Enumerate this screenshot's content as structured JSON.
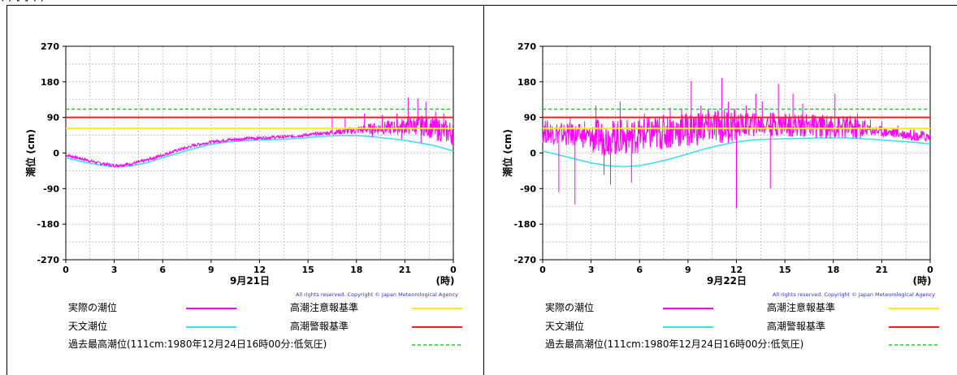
{
  "header_fragment": "(        )  [        ]                                         (                                                                         )",
  "legend": {
    "actual": "実際の潮位",
    "astronomical": "天文潮位",
    "highest": "過去最高潮位(111cm:1980年12月24日16時00分:低気圧)",
    "caution": "高潮注意報基準",
    "warning": "高潮警報基準"
  },
  "copyright": "All rights reserved. Copyright © Japan Meteorological Agency",
  "colors": {
    "actual": "#ff00ff",
    "astronomical": "#44ddee",
    "caution": "#ffee00",
    "warning": "#ee2222",
    "highest": "#22cc22",
    "grid": "#bbbbbb"
  },
  "chart_data": [
    {
      "type": "line",
      "xlabel": "9月21日",
      "x_unit": "(時)",
      "ylabel": "潮位 (cm)",
      "xlim": [
        0,
        24
      ],
      "ylim": [
        -270,
        270
      ],
      "x_ticks": [
        "0",
        "3",
        "6",
        "9",
        "12",
        "15",
        "18",
        "21",
        "0"
      ],
      "y_ticks": [
        "270",
        "180",
        "90",
        "0",
        "-90",
        "-180",
        "-270"
      ],
      "grid": true,
      "reference_lines": {
        "highest": 111,
        "warning": 90,
        "caution": 62
      },
      "series": [
        {
          "name": "天文潮位",
          "x": [
            0,
            1,
            2,
            3,
            4,
            5,
            6,
            7,
            8,
            9,
            10,
            11,
            12,
            13,
            14,
            15,
            16,
            17,
            18,
            19,
            20,
            21,
            22,
            23,
            24
          ],
          "y": [
            -12,
            -22,
            -30,
            -35,
            -33,
            -25,
            -12,
            0,
            12,
            22,
            28,
            31,
            33,
            34,
            36,
            39,
            42,
            44,
            44,
            41,
            37,
            32,
            25,
            17,
            5
          ]
        },
        {
          "name": "実際の潮位",
          "x": [
            0,
            1,
            2,
            3,
            4,
            5,
            6,
            7,
            8,
            9,
            10,
            11,
            12,
            13,
            14,
            15,
            16,
            17,
            18,
            19,
            20,
            21,
            22,
            23,
            24
          ],
          "y": [
            -5,
            -15,
            -25,
            -32,
            -28,
            -18,
            -5,
            8,
            20,
            28,
            33,
            36,
            38,
            40,
            42,
            46,
            50,
            54,
            58,
            62,
            64,
            68,
            70,
            60,
            50
          ],
          "spikes": [
            [
              16.5,
              90
            ],
            [
              17.3,
              88
            ],
            [
              18.5,
              100
            ],
            [
              19.6,
              96
            ],
            [
              20.5,
              100
            ],
            [
              21.2,
              140
            ],
            [
              21.8,
              138
            ],
            [
              22.3,
              130
            ],
            [
              22.9,
              105
            ],
            [
              23.4,
              100
            ],
            [
              19.0,
              40
            ],
            [
              20.8,
              35
            ],
            [
              22.0,
              25
            ],
            [
              23.0,
              30
            ]
          ]
        }
      ]
    },
    {
      "type": "line",
      "xlabel": "9月22日",
      "x_unit": "(時)",
      "ylabel": "潮位 (cm)",
      "xlim": [
        0,
        24
      ],
      "ylim": [
        -270,
        270
      ],
      "x_ticks": [
        "0",
        "3",
        "6",
        "9",
        "12",
        "15",
        "18",
        "21",
        "0"
      ],
      "y_ticks": [
        "270",
        "180",
        "90",
        "0",
        "-90",
        "-180",
        "-270"
      ],
      "grid": true,
      "reference_lines": {
        "highest": 111,
        "warning": 90,
        "caution": 62
      },
      "series": [
        {
          "name": "天文潮位",
          "x": [
            0,
            1,
            2,
            3,
            4,
            5,
            6,
            7,
            8,
            9,
            10,
            11,
            12,
            13,
            14,
            15,
            16,
            17,
            18,
            19,
            20,
            21,
            22,
            23,
            24
          ],
          "y": [
            5,
            -5,
            -15,
            -25,
            -32,
            -35,
            -32,
            -24,
            -14,
            -2,
            10,
            20,
            28,
            33,
            35,
            36,
            37,
            38,
            38,
            38,
            36,
            33,
            30,
            27,
            23
          ],
          "style": "solid"
        },
        {
          "name": "実際の潮位",
          "x": [
            0,
            1,
            2,
            3,
            4,
            5,
            6,
            7,
            8,
            9,
            10,
            11,
            12,
            13,
            14,
            15,
            16,
            17,
            18,
            19,
            20,
            21,
            22,
            23,
            24
          ],
          "y": [
            55,
            50,
            45,
            40,
            38,
            40,
            45,
            50,
            55,
            60,
            65,
            68,
            70,
            72,
            73,
            72,
            70,
            68,
            66,
            64,
            60,
            55,
            50,
            45,
            40
          ],
          "spikes": [
            [
              1.0,
              -100
            ],
            [
              1.7,
              90
            ],
            [
              2.0,
              -130
            ],
            [
              2.6,
              80
            ],
            [
              3.3,
              120
            ],
            [
              3.8,
              -55
            ],
            [
              4.2,
              -80
            ],
            [
              4.8,
              130
            ],
            [
              5.5,
              -75
            ],
            [
              6.3,
              100
            ],
            [
              7.0,
              85
            ],
            [
              7.9,
              115
            ],
            [
              8.6,
              110
            ],
            [
              9.2,
              182
            ],
            [
              9.8,
              120
            ],
            [
              10.3,
              100
            ],
            [
              11.1,
              190
            ],
            [
              11.5,
              130
            ],
            [
              12.0,
              -140
            ],
            [
              12.6,
              120
            ],
            [
              13.2,
              150
            ],
            [
              13.6,
              130
            ],
            [
              14.1,
              -90
            ],
            [
              14.6,
              175
            ],
            [
              15.0,
              100
            ],
            [
              15.5,
              150
            ],
            [
              16.1,
              125
            ],
            [
              16.6,
              85
            ],
            [
              17.3,
              90
            ],
            [
              18.1,
              150
            ],
            [
              18.8,
              90
            ],
            [
              19.5,
              100
            ],
            [
              20.3,
              85
            ],
            [
              21.0,
              80
            ],
            [
              22.0,
              70
            ],
            [
              23.0,
              60
            ],
            [
              23.5,
              52
            ]
          ]
        }
      ]
    }
  ]
}
